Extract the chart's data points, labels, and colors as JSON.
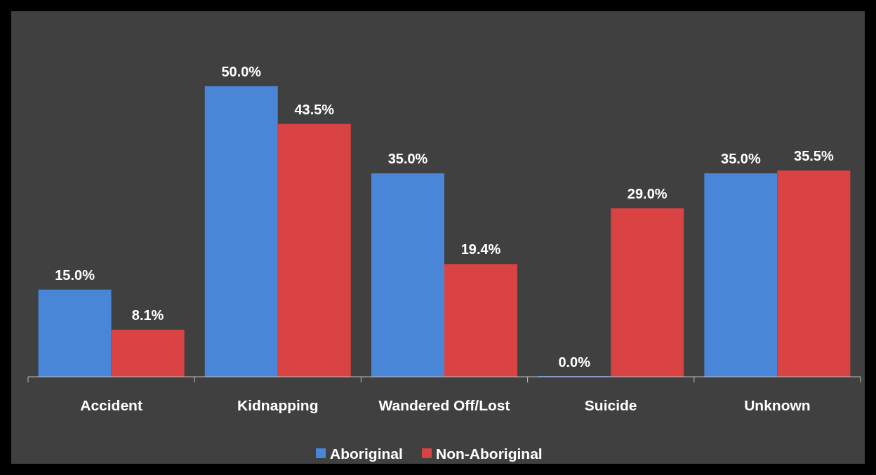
{
  "chart_data": {
    "type": "bar",
    "categories": [
      "Accident",
      "Kidnapping",
      "Wandered Off/Lost",
      "Suicide",
      "Unknown"
    ],
    "series": [
      {
        "name": "Aboriginal",
        "color": "#4a86d8",
        "values": [
          15.0,
          50.0,
          35.0,
          0.0,
          35.0
        ],
        "value_labels": [
          "15.0%",
          "50.0%",
          "35.0%",
          "0.0%",
          "35.0%"
        ]
      },
      {
        "name": "Non-Aboriginal",
        "color": "#d94343",
        "values": [
          8.1,
          43.5,
          19.4,
          29.0,
          35.5
        ],
        "value_labels": [
          "8.1%",
          "43.5%",
          "19.4%",
          "29.0%",
          "35.5%"
        ]
      }
    ],
    "legend": "bottom",
    "grid": false
  }
}
